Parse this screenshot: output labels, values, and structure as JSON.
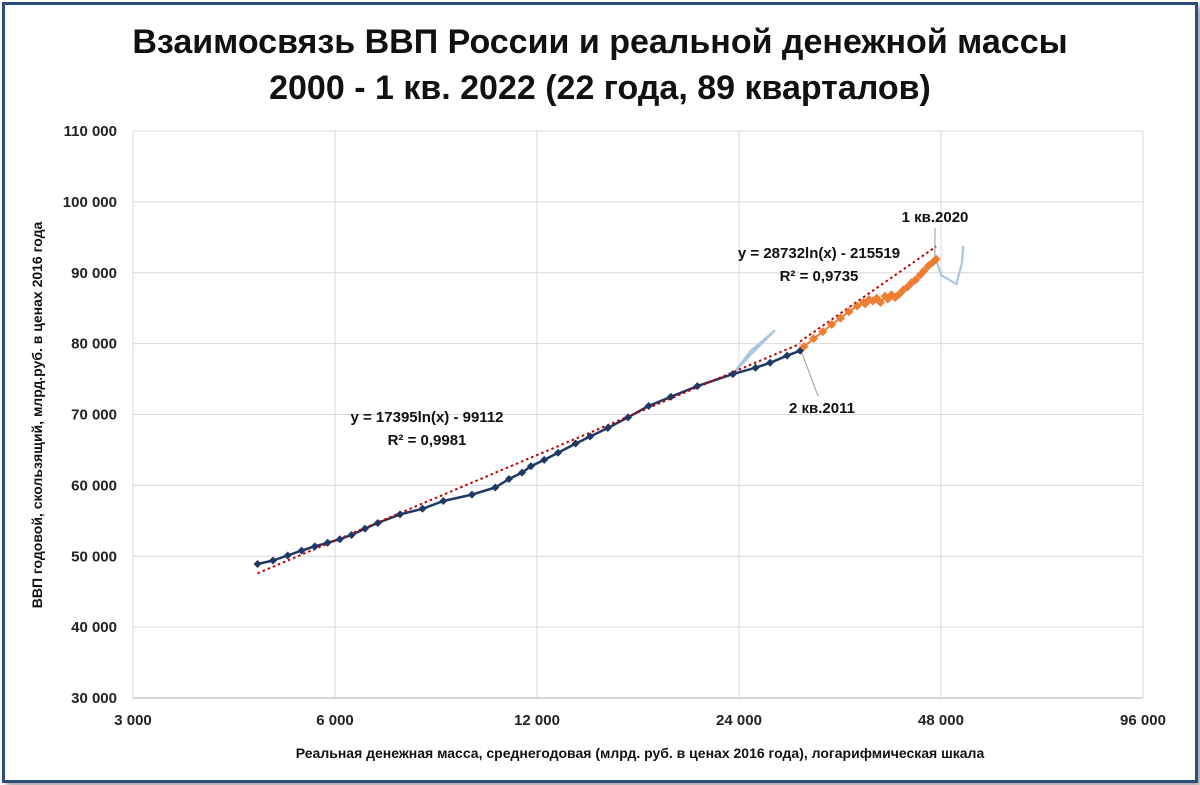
{
  "chart_data": {
    "type": "scatter",
    "title": "Взаимосвязь ВВП России и реальной денежной массы",
    "subtitle": "2000 - 1 кв. 2022 (22 года, 89 кварталов)",
    "xlabel": "Реальная денежная масса, среднегодовая (млрд. руб. в ценах 2016 года), логарифмическая шкала",
    "ylabel": "ВВП годовой, скользящий, млрд.руб. в ценах 2016 года",
    "x_scale": "log2",
    "xlim": [
      3000,
      96000
    ],
    "ylim": [
      30000,
      110000
    ],
    "x_ticks": [
      "3 000",
      "6 000",
      "12 000",
      "24 000",
      "48 000",
      "96 000"
    ],
    "y_ticks": [
      "30 000",
      "40 000",
      "50 000",
      "60 000",
      "70 000",
      "80 000",
      "90 000",
      "100 000",
      "110 000"
    ],
    "grid": true,
    "colors": {
      "series1": "#1f3864",
      "series2": "#ed7d31",
      "trend": "#c00000",
      "callout": "#a9c4e4"
    },
    "series": [
      {
        "color": "#1f3864",
        "points": [
          [
            4600,
            48900
          ],
          [
            4850,
            49400
          ],
          [
            5100,
            50100
          ],
          [
            5350,
            50800
          ],
          [
            5600,
            51400
          ],
          [
            5850,
            51900
          ],
          [
            6100,
            52400
          ],
          [
            6350,
            53000
          ],
          [
            6650,
            53900
          ],
          [
            6950,
            54700
          ],
          [
            7500,
            55900
          ],
          [
            8100,
            56700
          ],
          [
            8700,
            57800
          ],
          [
            9600,
            58700
          ],
          [
            10400,
            59700
          ],
          [
            10900,
            60900
          ],
          [
            11400,
            61800
          ],
          [
            11750,
            62700
          ],
          [
            12300,
            63600
          ],
          [
            12900,
            64600
          ],
          [
            13700,
            65900
          ],
          [
            14400,
            66900
          ],
          [
            15300,
            68100
          ],
          [
            16400,
            69600
          ],
          [
            17600,
            71200
          ],
          [
            19000,
            72500
          ],
          [
            20800,
            74000
          ],
          [
            23500,
            75700
          ],
          [
            25400,
            76600
          ],
          [
            26700,
            77300
          ],
          [
            28300,
            78300
          ],
          [
            29600,
            79000
          ]
        ]
      },
      {
        "color": "#ed7d31",
        "points": [
          [
            30000,
            79600
          ],
          [
            31000,
            80700
          ],
          [
            32000,
            81700
          ],
          [
            33000,
            82700
          ],
          [
            34000,
            83600
          ],
          [
            35000,
            84500
          ],
          [
            36000,
            85300
          ],
          [
            36800,
            85800
          ],
          [
            37500,
            86200
          ],
          [
            37000,
            85600
          ],
          [
            38000,
            86000
          ],
          [
            38500,
            86400
          ],
          [
            39000,
            85800
          ],
          [
            39600,
            86700
          ],
          [
            40000,
            86300
          ],
          [
            40500,
            86900
          ],
          [
            41000,
            86500
          ],
          [
            41600,
            87000
          ],
          [
            42200,
            87600
          ],
          [
            42800,
            88000
          ],
          [
            43400,
            88600
          ],
          [
            44000,
            89000
          ],
          [
            44700,
            89700
          ],
          [
            45300,
            90300
          ],
          [
            46000,
            91000
          ],
          [
            46700,
            91500
          ],
          [
            47200,
            91900
          ]
        ]
      }
    ],
    "trendlines": [
      {
        "equation": "y = 17395ln(x) - 99112",
        "r2": "R² = 0,9981",
        "a": 17395,
        "b": -99112,
        "x_range": [
          4600,
          29600
        ]
      },
      {
        "equation": "y = 28732ln(x) - 215519",
        "r2": "R² = 0,9735",
        "a": 28732,
        "b": -215519,
        "x_range": [
          29600,
          47200
        ]
      }
    ],
    "annotations": [
      {
        "text": "1 кв.2020"
      },
      {
        "text": "2 кв.2011"
      }
    ]
  }
}
